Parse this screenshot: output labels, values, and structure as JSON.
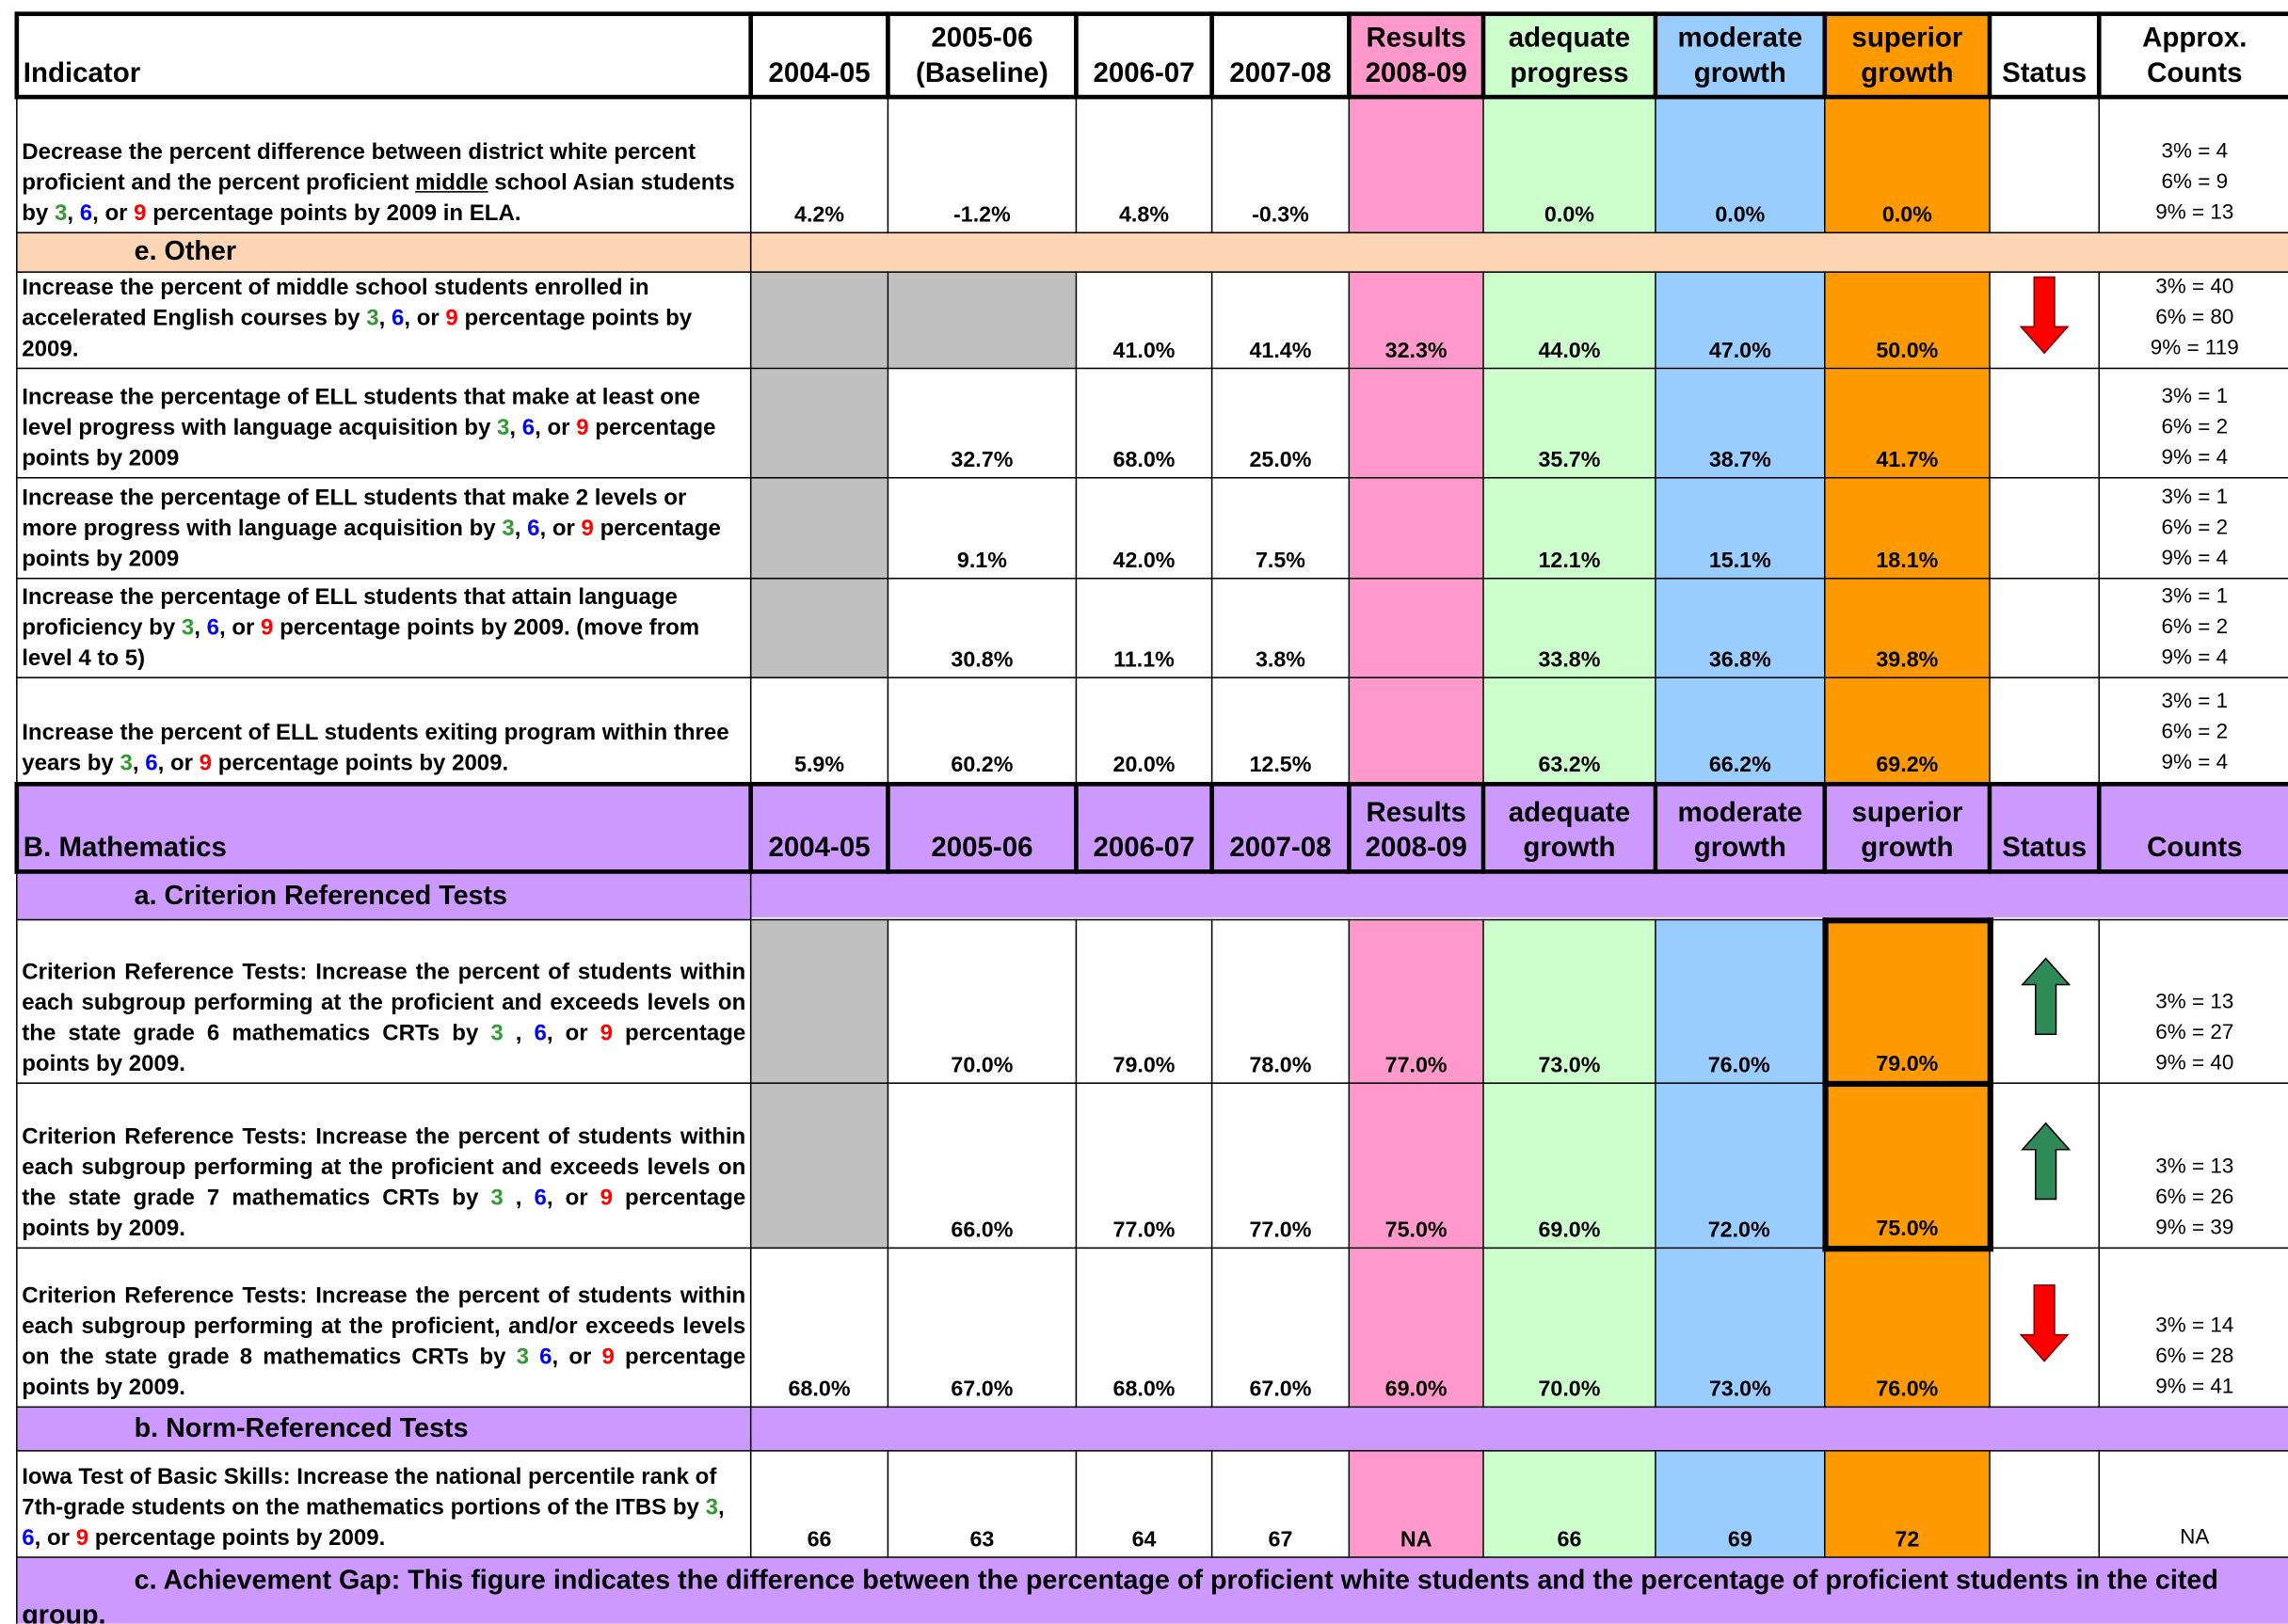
{
  "rows": [
    {
      "header": [
        "Indicator",
        "2004-05",
        "2005-06\n(Baseline)",
        "2006-07",
        "2007-08",
        "Results\n2008-09",
        "adequate\nprogress",
        "moderate\ngrowth",
        "superior\ngrowth",
        "Status",
        "Approx.\nCounts"
      ]
    },
    {
      "indicator": [
        "Decrease the percent difference between district white percent proficient and the percent proficient ",
        {
          "text": "middle",
          "underline": true
        },
        " school Asian students by ",
        {
          "text": "3",
          "color": "#339933"
        },
        ", ",
        {
          "text": "6",
          "color": "#0000ff"
        },
        ", or ",
        {
          "text": "9",
          "color": "#ff0000"
        },
        " percentage points by 2009 in ELA."
      ],
      "values": [
        "4.2%",
        "-1.2%",
        "4.8%",
        "-0.3%",
        null,
        "0.0%",
        "0.0%",
        "0.0%"
      ],
      "counts": [
        "3% = 4",
        "6% = 9",
        "9% = 13"
      ]
    },
    {
      "section": "e.  Other",
      "fill": "#fcd5b4"
    },
    {
      "indicator": [
        "Increase the percent of middle school students enrolled in accelerated English courses by ",
        {
          "text": "3",
          "color": "#339933"
        },
        ", ",
        {
          "text": "6",
          "color": "#0000ff"
        },
        ", or ",
        {
          "text": "9",
          "color": "#ff0000"
        },
        " percentage points by 2009."
      ],
      "values": [
        null,
        null,
        "41.0%",
        "41.4%",
        "32.3%",
        "44.0%",
        "47.0%",
        "50.0%"
      ],
      "status": "down",
      "counts": [
        "3% = 40",
        "6% = 80",
        "9% = 119"
      ]
    },
    {
      "indicator": [
        "Increase the percentage of ELL students that make at least one level progress with language acquisition by ",
        {
          "text": "3",
          "color": "#339933"
        },
        ", ",
        {
          "text": "6",
          "color": "#0000ff"
        },
        ", or ",
        {
          "text": "9",
          "color": "#ff0000"
        },
        " percentage points by 2009"
      ],
      "values": [
        null,
        "32.7%",
        "68.0%",
        "25.0%",
        null,
        "35.7%",
        "38.7%",
        "41.7%"
      ],
      "counts": [
        "3% = 1",
        "6% = 2",
        "9% = 4"
      ]
    },
    {
      "indicator": [
        "Increase the percentage of ELL students that make  2 levels or more progress with language acquisition by ",
        {
          "text": "3",
          "color": "#339933"
        },
        ", ",
        {
          "text": "6",
          "color": "#0000ff"
        },
        ", or ",
        {
          "text": "9",
          "color": "#ff0000"
        },
        " percentage points by 2009"
      ],
      "values": [
        null,
        "9.1%",
        "42.0%",
        "7.5%",
        null,
        "12.1%",
        "15.1%",
        "18.1%"
      ],
      "counts": [
        "3% = 1",
        "6% = 2",
        "9% = 4"
      ]
    },
    {
      "indicator": [
        "Increase the percentage of ELL students that attain language proficiency by ",
        {
          "text": "3",
          "color": "#339933"
        },
        ", ",
        {
          "text": "6",
          "color": "#0000ff"
        },
        ", or ",
        {
          "text": "9",
          "color": "#ff0000"
        },
        " percentage points by 2009. (move from level 4 to 5)"
      ],
      "values": [
        null,
        "30.8%",
        "11.1%",
        "3.8%",
        null,
        "33.8%",
        "36.8%",
        "39.8%"
      ],
      "counts": [
        "3% = 1",
        "6% = 2",
        "9% = 4"
      ]
    },
    {
      "indicator": [
        "Increase the percent of ELL students exiting program within three years by ",
        {
          "text": "3",
          "color": "#339933"
        },
        ", ",
        {
          "text": "6",
          "color": "#0000ff"
        },
        ", or ",
        {
          "text": "9",
          "color": "#ff0000"
        },
        " percentage points by 2009."
      ],
      "values": [
        "5.9%",
        "60.2%",
        "20.0%",
        "12.5%",
        null,
        "63.2%",
        "66.2%",
        "69.2%"
      ],
      "counts": [
        "3% = 1",
        "6% = 2",
        "9% = 4"
      ]
    },
    {
      "header": [
        "B.  Mathematics",
        "2004-05",
        "2005-06",
        "2006-07",
        "2007-08",
        "Results\n2008-09",
        "adequate\ngrowth",
        "moderate\ngrowth",
        "superior\ngrowth",
        "Status",
        "Counts"
      ],
      "fill": "#cc99ff"
    },
    {
      "section": "a.  Criterion Referenced Tests",
      "fill": "#cc99ff"
    },
    {
      "indicator": [
        "Criterion Reference Tests: Increase the percent of students within each subgroup performing at the proficient and exceeds levels on the state grade 6 mathematics CRTs  by ",
        {
          "text": "3",
          "color": "#339933"
        },
        " , ",
        {
          "text": "6",
          "color": "#0000ff"
        },
        ", or ",
        {
          "text": "9",
          "color": "#ff0000"
        },
        " percentage points by 2009."
      ],
      "justify": true,
      "values": [
        null,
        "70.0%",
        "79.0%",
        "78.0%",
        "77.0%",
        "73.0%",
        "76.0%",
        "79.0%"
      ],
      "status": "up",
      "boxed": true,
      "counts": [
        "3% = 13",
        "6% = 27",
        "9% = 40"
      ]
    },
    {
      "indicator": [
        "Criterion Reference Tests: Increase the percent of students within each subgroup performing at the proficient and exceeds levels on the state grade 7 mathematics CRTs  by ",
        {
          "text": "3",
          "color": "#339933"
        },
        " , ",
        {
          "text": "6",
          "color": "#0000ff"
        },
        ", or ",
        {
          "text": "9",
          "color": "#ff0000"
        },
        " percentage points by 2009."
      ],
      "justify": true,
      "values": [
        null,
        "66.0%",
        "77.0%",
        "77.0%",
        "75.0%",
        "69.0%",
        "72.0%",
        "75.0%"
      ],
      "status": "up",
      "boxed": true,
      "counts": [
        "3% = 13",
        "6% = 26",
        "9% = 39"
      ]
    },
    {
      "indicator": [
        "Criterion Reference Tests: Increase the percent of students within each subgroup performing at the proficient, and/or exceeds levels on the state grade 8 mathematics CRTs by ",
        {
          "text": "3",
          "color": "#339933"
        },
        " ",
        {
          "text": "6",
          "color": "#0000ff"
        },
        ", or ",
        {
          "text": "9",
          "color": "#ff0000"
        },
        " percentage points by 2009."
      ],
      "justify": true,
      "values": [
        "68.0%",
        "67.0%",
        "68.0%",
        "67.0%",
        "69.0%",
        "70.0%",
        "73.0%",
        "76.0%"
      ],
      "status": "down",
      "counts": [
        "3% = 14",
        "6% = 28",
        "9% = 41"
      ]
    },
    {
      "section": "b.  Norm-Referenced Tests",
      "fill": "#cc99ff"
    },
    {
      "indicator": [
        "Iowa Test of Basic Skills:  Increase the national percentile rank of 7th-grade students on the mathematics portions of the ITBS by ",
        {
          "text": "3",
          "color": "#339933"
        },
        ", ",
        {
          "text": "6",
          "color": "#0000ff"
        },
        ", or ",
        {
          "text": "9",
          "color": "#ff0000"
        },
        " percentage points by 2009."
      ],
      "values": [
        "66",
        "63",
        "64",
        "67",
        "NA",
        "66",
        "69",
        "72"
      ],
      "counts": [
        "NA"
      ]
    },
    {
      "section": "c.  Achievement Gap:  This figure indicates the difference between the percentage of proficient white students and the percentage of proficient students in the cited group.",
      "fill": "#cc99ff",
      "wide": true
    }
  ]
}
